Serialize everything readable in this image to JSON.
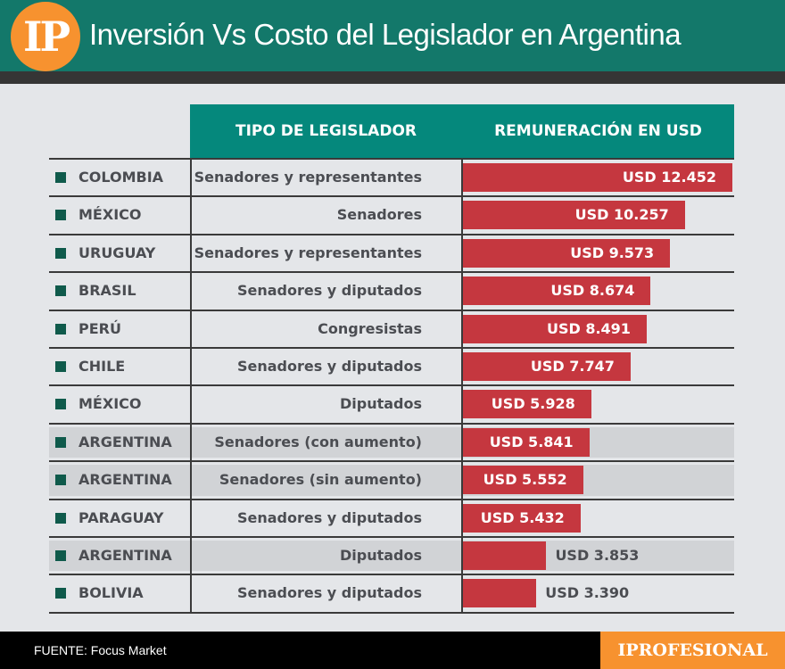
{
  "header": {
    "logo": "IP",
    "title": "Inversión Vs Costo del Legislador en Argentina"
  },
  "chart_data": {
    "type": "bar",
    "orientation": "horizontal",
    "columns": [
      "TIPO DE LEGISLADOR",
      "REMUNERACIÓN EN USD"
    ],
    "rows": [
      {
        "country": "COLOMBIA",
        "type": "Senadores y representantes",
        "value": 12452,
        "label": "USD 12.452",
        "highlight": false
      },
      {
        "country": "MÉXICO",
        "type": "Senadores",
        "value": 10257,
        "label": "USD 10.257",
        "highlight": false
      },
      {
        "country": "URUGUAY",
        "type": "Senadores y representantes",
        "value": 9573,
        "label": "USD 9.573",
        "highlight": false
      },
      {
        "country": "BRASIL",
        "type": "Senadores y diputados",
        "value": 8674,
        "label": "USD 8.674",
        "highlight": false
      },
      {
        "country": "PERÚ",
        "type": "Congresistas",
        "value": 8491,
        "label": "USD 8.491",
        "highlight": false
      },
      {
        "country": "CHILE",
        "type": "Senadores y diputados",
        "value": 7747,
        "label": "USD 7.747",
        "highlight": false
      },
      {
        "country": "MÉXICO",
        "type": "Diputados",
        "value": 5928,
        "label": "USD 5.928",
        "highlight": false
      },
      {
        "country": "ARGENTINA",
        "type": "Senadores (con aumento)",
        "value": 5841,
        "label": "USD 5.841",
        "highlight": true
      },
      {
        "country": "ARGENTINA",
        "type": "Senadores (sin aumento)",
        "value": 5552,
        "label": "USD 5.552",
        "highlight": true
      },
      {
        "country": "PARAGUAY",
        "type": "Senadores y diputados",
        "value": 5432,
        "label": "USD 5.432",
        "highlight": false
      },
      {
        "country": "ARGENTINA",
        "type": "Diputados",
        "value": 3853,
        "label": "USD 3.853",
        "highlight": true
      },
      {
        "country": "BOLIVIA",
        "type": "Senadores y diputados",
        "value": 3390,
        "label": "USD 3.390",
        "highlight": false
      }
    ],
    "xlim": [
      0,
      12452
    ],
    "colors": {
      "bar": "#c5373f",
      "header": "#05887c",
      "highlight_row": "#d1d3d6"
    }
  },
  "footer": {
    "source": "FUENTE: Focus Market",
    "brand": "IPROFESIONAL"
  }
}
